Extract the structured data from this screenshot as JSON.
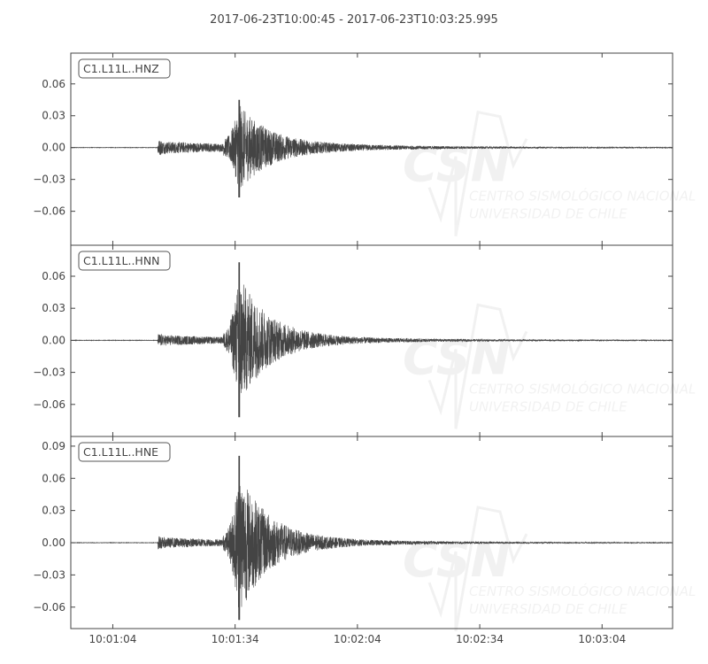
{
  "chart_data": {
    "type": "line",
    "title": "2017-06-23T10:00:45  -  2017-06-23T10:03:25.995",
    "start_time": "2017-06-23T10:00:45",
    "end_time": "2017-06-23T10:03:25.995",
    "xlim_seconds_after_start": [
      8.7,
      156.3
    ],
    "x_ticks": [
      {
        "t": 19,
        "label": "10:01:04"
      },
      {
        "t": 49,
        "label": "10:01:34"
      },
      {
        "t": 79,
        "label": "10:02:04"
      },
      {
        "t": 109,
        "label": "10:02:34"
      },
      {
        "t": 139,
        "label": "10:03:04"
      }
    ],
    "grid": false,
    "line_color": "#444444",
    "series": [
      {
        "name": "C1.L11L..HNZ",
        "ylim": [
          -0.092,
          0.089
        ],
        "y_ticks": [
          "0.06",
          "0.03",
          "0.00",
          "−0.03",
          "−0.06"
        ],
        "y_tick_values": [
          0.06,
          0.03,
          0,
          -0.03,
          -0.06
        ],
        "onset_s": 30,
        "peak_s": 50,
        "p_amplitude": 0.006,
        "peak_max": 0.045,
        "peak_min": -0.047
      },
      {
        "name": "C1.L11L..HNN",
        "ylim": [
          -0.09,
          0.089
        ],
        "y_ticks": [
          "0.06",
          "0.03",
          "0.00",
          "−0.03",
          "−0.06"
        ],
        "y_tick_values": [
          0.06,
          0.03,
          0,
          -0.03,
          -0.06
        ],
        "onset_s": 30,
        "peak_s": 50,
        "p_amplitude": 0.005,
        "peak_max": 0.073,
        "peak_min": -0.072
      },
      {
        "name": "C1.L11L..HNE",
        "ylim": [
          -0.08,
          0.099
        ],
        "y_ticks": [
          "0.09",
          "0.06",
          "0.03",
          "0.00",
          "−0.03",
          "−0.06"
        ],
        "y_tick_values": [
          0.09,
          0.06,
          0.03,
          0,
          -0.03,
          -0.06
        ],
        "onset_s": 30,
        "peak_s": 50,
        "p_amplitude": 0.005,
        "peak_max": 0.081,
        "peak_min": -0.072
      }
    ],
    "watermark": {
      "logo": "CSN",
      "line1": "CENTRO SISMOLÓGICO NACIONAL",
      "line2": "UNIVERSIDAD DE CHILE"
    }
  }
}
